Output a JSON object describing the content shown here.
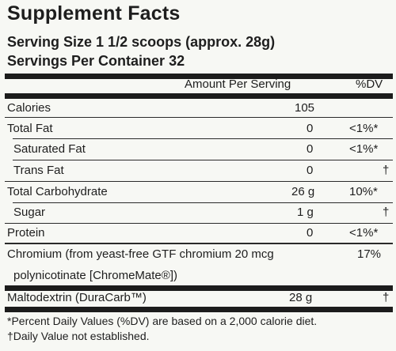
{
  "header": {
    "title": "Supplement Facts",
    "serving_size": "Serving Size 1 1/2 scoops (approx. 28g)",
    "servings_per_container": "Servings Per Container 32"
  },
  "columns": {
    "amount": "Amount Per Serving",
    "dv": "%DV"
  },
  "rows": [
    {
      "label": "Calories",
      "amount": "105",
      "dv": ""
    },
    {
      "label": "Total Fat",
      "amount": "0",
      "dv": "<1%*"
    },
    {
      "label": "Saturated Fat",
      "amount": "0",
      "dv": "<1%*"
    },
    {
      "label": "Trans Fat",
      "amount": "0",
      "dv": "†"
    },
    {
      "label": "Total Carbohydrate",
      "amount": "26 g",
      "dv": "10%*"
    },
    {
      "label": "Sugar",
      "amount": "1 g",
      "dv": "†"
    },
    {
      "label": "Protein",
      "amount": "0",
      "dv": "<1%*"
    }
  ],
  "chromium": {
    "line1": "Chromium (from yeast-free GTF chromium 20 mcg",
    "line2": "polynicotinate [ChromeMate®])",
    "dv": "17%"
  },
  "maltodextrin": {
    "label": "Maltodextrin (DuraCarb™)",
    "amount": "28 g",
    "dv": "†"
  },
  "footnotes": {
    "line1": "*Percent Daily Values (%DV) are based on a 2,000 calorie diet.",
    "line2": "†Daily Value not established."
  }
}
